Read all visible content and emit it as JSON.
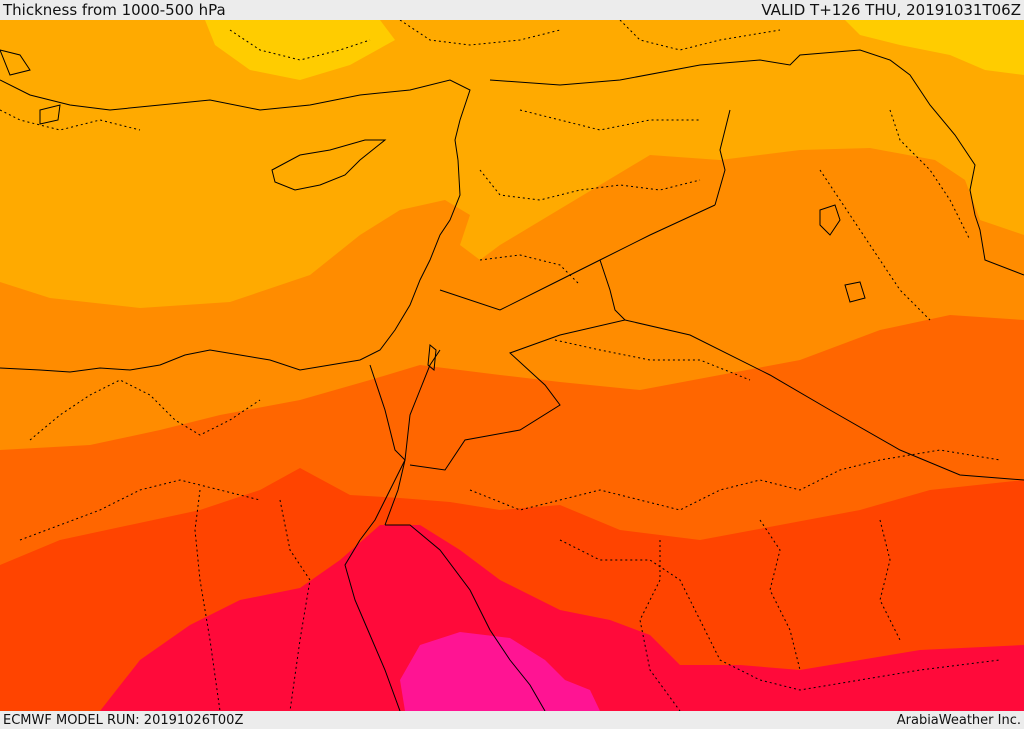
{
  "header": {
    "title": "Thickness from 1000-500 hPa",
    "valid": "VALID T+126 THU, 20191031T06Z"
  },
  "footer": {
    "model_run": "ECMWF MODEL RUN: 20191026T00Z",
    "credit": "ArabiaWeather Inc."
  },
  "map": {
    "region": "Eastern Mediterranean, Levant, Egypt, northern Arabia",
    "colors": {
      "band_coolest": "#ffcc00",
      "band_1": "#ffaa00",
      "band_2": "#ff8c00",
      "band_3": "#ff6600",
      "band_4": "#ff4400",
      "band_5": "#ff0a3a",
      "band_warmest": "#ff1493",
      "coastline": "#000000",
      "border_dotted": "#000000"
    }
  }
}
